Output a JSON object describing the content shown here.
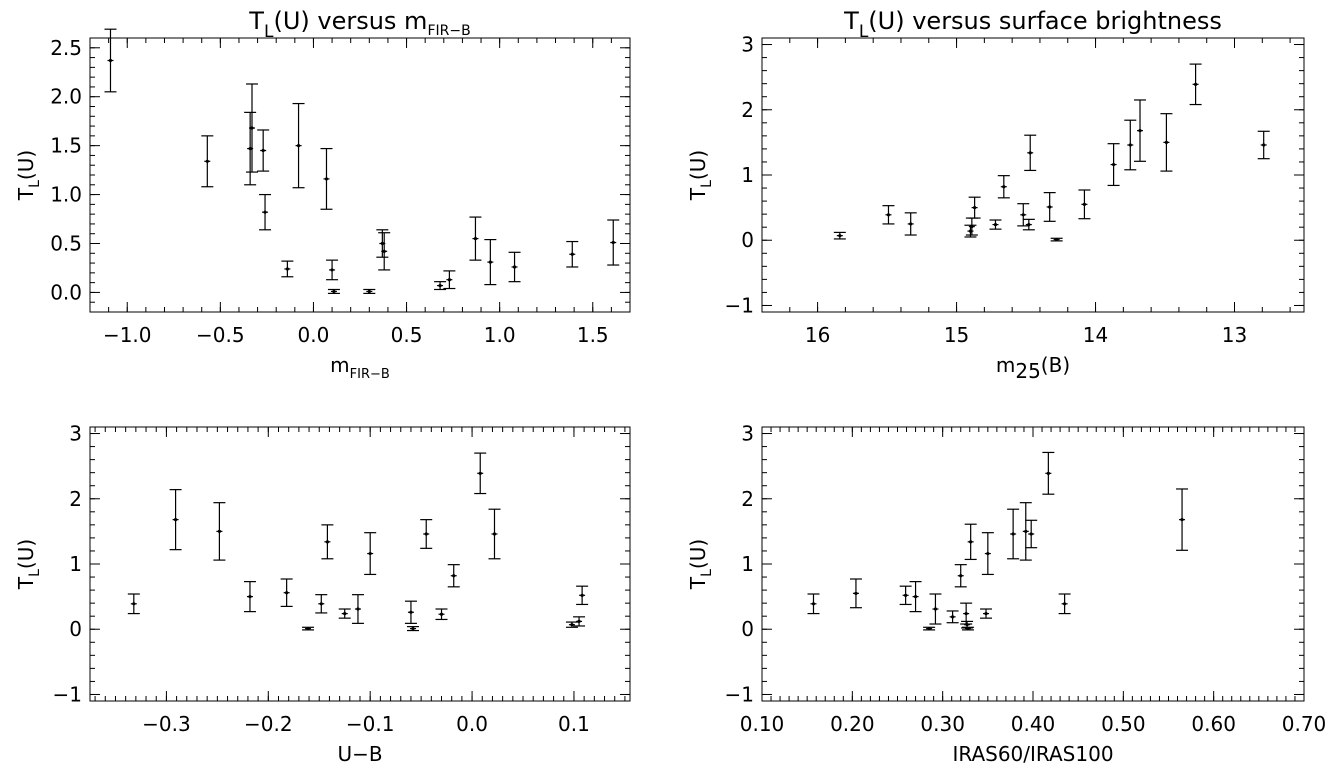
{
  "chart_data": [
    {
      "type": "scatter",
      "title": "T_L(U) versus m_FIR-B",
      "title_parts": {
        "main": "T",
        "sub": "L",
        "mid": "(U) versus m",
        "sub2": "FIR−B"
      },
      "xlabel": "m_FIR-B",
      "xlabel_parts": {
        "main": "m",
        "sub": "FIR−B",
        "tail": ""
      },
      "ylabel": "T_L(U)",
      "xlim": [
        -1.2,
        1.7
      ],
      "ylim": [
        -0.2,
        2.6
      ],
      "x_reversed": false,
      "xticks": [
        -1.0,
        -0.5,
        0.0,
        0.5,
        1.0,
        1.5
      ],
      "xtick_labels": [
        "−1.0",
        "−0.5",
        "0.0",
        "0.5",
        "1.0",
        "1.5"
      ],
      "yticks": [
        0.0,
        0.5,
        1.0,
        1.5,
        2.0,
        2.5
      ],
      "ytick_labels": [
        "0.0",
        "0.5",
        "1.0",
        "1.5",
        "2.0",
        "2.5"
      ],
      "minor_step_x": 0.1,
      "minor_step_y": 0.1,
      "points": [
        {
          "x": -1.09,
          "y": 2.37,
          "yerr": 0.32
        },
        {
          "x": -0.57,
          "y": 1.34,
          "yerr": 0.26
        },
        {
          "x": -0.34,
          "y": 1.47,
          "yerr": 0.37
        },
        {
          "x": -0.33,
          "y": 1.68,
          "yerr": 0.45
        },
        {
          "x": -0.27,
          "y": 1.45,
          "yerr": 0.21
        },
        {
          "x": -0.26,
          "y": 0.82,
          "yerr": 0.18
        },
        {
          "x": -0.14,
          "y": 0.24,
          "yerr": 0.08
        },
        {
          "x": -0.08,
          "y": 1.5,
          "yerr": 0.43
        },
        {
          "x": 0.07,
          "y": 1.16,
          "yerr": 0.31
        },
        {
          "x": 0.1,
          "y": 0.23,
          "yerr": 0.1
        },
        {
          "x": 0.11,
          "y": 0.01,
          "yerr": 0.02
        },
        {
          "x": 0.3,
          "y": 0.01,
          "yerr": 0.02
        },
        {
          "x": 0.37,
          "y": 0.5,
          "yerr": 0.14
        },
        {
          "x": 0.38,
          "y": 0.42,
          "yerr": 0.19
        },
        {
          "x": 0.68,
          "y": 0.07,
          "yerr": 0.04
        },
        {
          "x": 0.73,
          "y": 0.13,
          "yerr": 0.09
        },
        {
          "x": 0.87,
          "y": 0.55,
          "yerr": 0.22
        },
        {
          "x": 0.95,
          "y": 0.31,
          "yerr": 0.23
        },
        {
          "x": 1.08,
          "y": 0.26,
          "yerr": 0.15
        },
        {
          "x": 1.39,
          "y": 0.39,
          "yerr": 0.13
        },
        {
          "x": 1.61,
          "y": 0.51,
          "yerr": 0.23
        }
      ]
    },
    {
      "type": "scatter",
      "title": "T_L(U) versus surface brightness",
      "title_parts": {
        "main": "T",
        "sub": "L",
        "mid": "(U) versus surface brightness",
        "sub2": ""
      },
      "xlabel": "m_25(B)",
      "xlabel_parts": {
        "main": "m",
        "sub": "25",
        "tail": "(B)"
      },
      "ylabel": "T_L(U)",
      "xlim": [
        16.4,
        12.5
      ],
      "ylim": [
        -1.1,
        3.1
      ],
      "x_reversed": true,
      "xticks": [
        16,
        15,
        14,
        13
      ],
      "xtick_labels": [
        "16",
        "15",
        "14",
        "13"
      ],
      "yticks": [
        -1,
        0,
        1,
        2,
        3
      ],
      "ytick_labels": [
        "−1",
        "0",
        "1",
        "2",
        "3"
      ],
      "minor_step_x": 0.2,
      "minor_step_y": 0.2,
      "points": [
        {
          "x": 15.84,
          "y": 0.07,
          "yerr": 0.05
        },
        {
          "x": 15.49,
          "y": 0.39,
          "yerr": 0.14
        },
        {
          "x": 15.33,
          "y": 0.25,
          "yerr": 0.17
        },
        {
          "x": 14.9,
          "y": 0.14,
          "yerr": 0.09
        },
        {
          "x": 14.89,
          "y": 0.21,
          "yerr": 0.13
        },
        {
          "x": 14.87,
          "y": 0.5,
          "yerr": 0.16
        },
        {
          "x": 14.72,
          "y": 0.24,
          "yerr": 0.07
        },
        {
          "x": 14.66,
          "y": 0.82,
          "yerr": 0.17
        },
        {
          "x": 14.52,
          "y": 0.39,
          "yerr": 0.17
        },
        {
          "x": 14.48,
          "y": 0.24,
          "yerr": 0.08
        },
        {
          "x": 14.47,
          "y": 1.34,
          "yerr": 0.27
        },
        {
          "x": 14.28,
          "y": 0.01,
          "yerr": 0.02
        },
        {
          "x": 14.33,
          "y": 0.51,
          "yerr": 0.22
        },
        {
          "x": 14.08,
          "y": 0.55,
          "yerr": 0.22
        },
        {
          "x": 13.87,
          "y": 1.16,
          "yerr": 0.32
        },
        {
          "x": 13.75,
          "y": 1.46,
          "yerr": 0.38
        },
        {
          "x": 13.68,
          "y": 1.68,
          "yerr": 0.47
        },
        {
          "x": 13.49,
          "y": 1.5,
          "yerr": 0.44
        },
        {
          "x": 13.28,
          "y": 2.39,
          "yerr": 0.31
        },
        {
          "x": 12.79,
          "y": 1.46,
          "yerr": 0.21
        }
      ]
    },
    {
      "type": "scatter",
      "title": "",
      "title_parts": {
        "main": "",
        "sub": "",
        "mid": "",
        "sub2": ""
      },
      "xlabel": "U−B",
      "xlabel_parts": {
        "main": "U−B",
        "sub": "",
        "tail": ""
      },
      "ylabel": "T_L(U)",
      "xlim": [
        -0.375,
        0.155
      ],
      "ylim": [
        -1.1,
        3.1
      ],
      "x_reversed": false,
      "xticks": [
        -0.3,
        -0.2,
        -0.1,
        0.0,
        0.1
      ],
      "xtick_labels": [
        "−0.3",
        "−0.2",
        "−0.1",
        "0.0",
        "0.1"
      ],
      "yticks": [
        -1,
        0,
        1,
        2,
        3
      ],
      "ytick_labels": [
        "−1",
        "0",
        "1",
        "2",
        "3"
      ],
      "minor_step_x": 0.01,
      "minor_step_y": 0.2,
      "points": [
        {
          "x": -0.332,
          "y": 0.39,
          "yerr": 0.15
        },
        {
          "x": -0.291,
          "y": 1.68,
          "yerr": 0.46
        },
        {
          "x": -0.248,
          "y": 1.5,
          "yerr": 0.44
        },
        {
          "x": -0.218,
          "y": 0.5,
          "yerr": 0.23
        },
        {
          "x": -0.182,
          "y": 0.56,
          "yerr": 0.21
        },
        {
          "x": -0.161,
          "y": 0.01,
          "yerr": 0.02
        },
        {
          "x": -0.148,
          "y": 0.39,
          "yerr": 0.14
        },
        {
          "x": -0.142,
          "y": 1.34,
          "yerr": 0.26
        },
        {
          "x": -0.125,
          "y": 0.24,
          "yerr": 0.07
        },
        {
          "x": -0.112,
          "y": 0.31,
          "yerr": 0.22
        },
        {
          "x": -0.1,
          "y": 1.16,
          "yerr": 0.32
        },
        {
          "x": -0.06,
          "y": 0.26,
          "yerr": 0.17
        },
        {
          "x": -0.058,
          "y": 0.01,
          "yerr": 0.03
        },
        {
          "x": -0.045,
          "y": 1.46,
          "yerr": 0.22
        },
        {
          "x": -0.03,
          "y": 0.23,
          "yerr": 0.08
        },
        {
          "x": -0.018,
          "y": 0.82,
          "yerr": 0.17
        },
        {
          "x": 0.008,
          "y": 2.39,
          "yerr": 0.31
        },
        {
          "x": 0.022,
          "y": 1.46,
          "yerr": 0.38
        },
        {
          "x": 0.098,
          "y": 0.07,
          "yerr": 0.04
        },
        {
          "x": 0.105,
          "y": 0.12,
          "yerr": 0.07
        },
        {
          "x": 0.108,
          "y": 0.52,
          "yerr": 0.14
        }
      ]
    },
    {
      "type": "scatter",
      "title": "",
      "title_parts": {
        "main": "",
        "sub": "",
        "mid": "",
        "sub2": ""
      },
      "xlabel": "IRAS60/IRAS100",
      "xlabel_parts": {
        "main": "IRAS60/IRAS100",
        "sub": "",
        "tail": ""
      },
      "ylabel": "T_L(U)",
      "xlim": [
        0.1,
        0.7
      ],
      "ylim": [
        -1.1,
        3.1
      ],
      "x_reversed": false,
      "xticks": [
        0.1,
        0.2,
        0.3,
        0.4,
        0.5,
        0.6,
        0.7
      ],
      "xtick_labels": [
        "0.10",
        "0.20",
        "0.30",
        "0.40",
        "0.50",
        "0.60",
        "0.70"
      ],
      "yticks": [
        -1,
        0,
        1,
        2,
        3
      ],
      "ytick_labels": [
        "−1",
        "0",
        "1",
        "2",
        "3"
      ],
      "minor_step_x": 0.01,
      "minor_step_y": 0.2,
      "points": [
        {
          "x": 0.157,
          "y": 0.39,
          "yerr": 0.15
        },
        {
          "x": 0.204,
          "y": 0.55,
          "yerr": 0.22
        },
        {
          "x": 0.259,
          "y": 0.52,
          "yerr": 0.14
        },
        {
          "x": 0.27,
          "y": 0.5,
          "yerr": 0.23
        },
        {
          "x": 0.285,
          "y": 0.01,
          "yerr": 0.02
        },
        {
          "x": 0.292,
          "y": 0.31,
          "yerr": 0.23
        },
        {
          "x": 0.311,
          "y": 0.19,
          "yerr": 0.09
        },
        {
          "x": 0.32,
          "y": 0.82,
          "yerr": 0.17
        },
        {
          "x": 0.326,
          "y": 0.24,
          "yerr": 0.16
        },
        {
          "x": 0.327,
          "y": 0.07,
          "yerr": 0.05
        },
        {
          "x": 0.328,
          "y": 0.01,
          "yerr": 0.02
        },
        {
          "x": 0.331,
          "y": 1.34,
          "yerr": 0.27
        },
        {
          "x": 0.348,
          "y": 0.24,
          "yerr": 0.07
        },
        {
          "x": 0.35,
          "y": 1.16,
          "yerr": 0.32
        },
        {
          "x": 0.378,
          "y": 1.46,
          "yerr": 0.38
        },
        {
          "x": 0.392,
          "y": 1.5,
          "yerr": 0.44
        },
        {
          "x": 0.398,
          "y": 1.46,
          "yerr": 0.21
        },
        {
          "x": 0.417,
          "y": 2.39,
          "yerr": 0.32
        },
        {
          "x": 0.435,
          "y": 0.39,
          "yerr": 0.15
        },
        {
          "x": 0.565,
          "y": 1.68,
          "yerr": 0.47
        }
      ]
    }
  ]
}
